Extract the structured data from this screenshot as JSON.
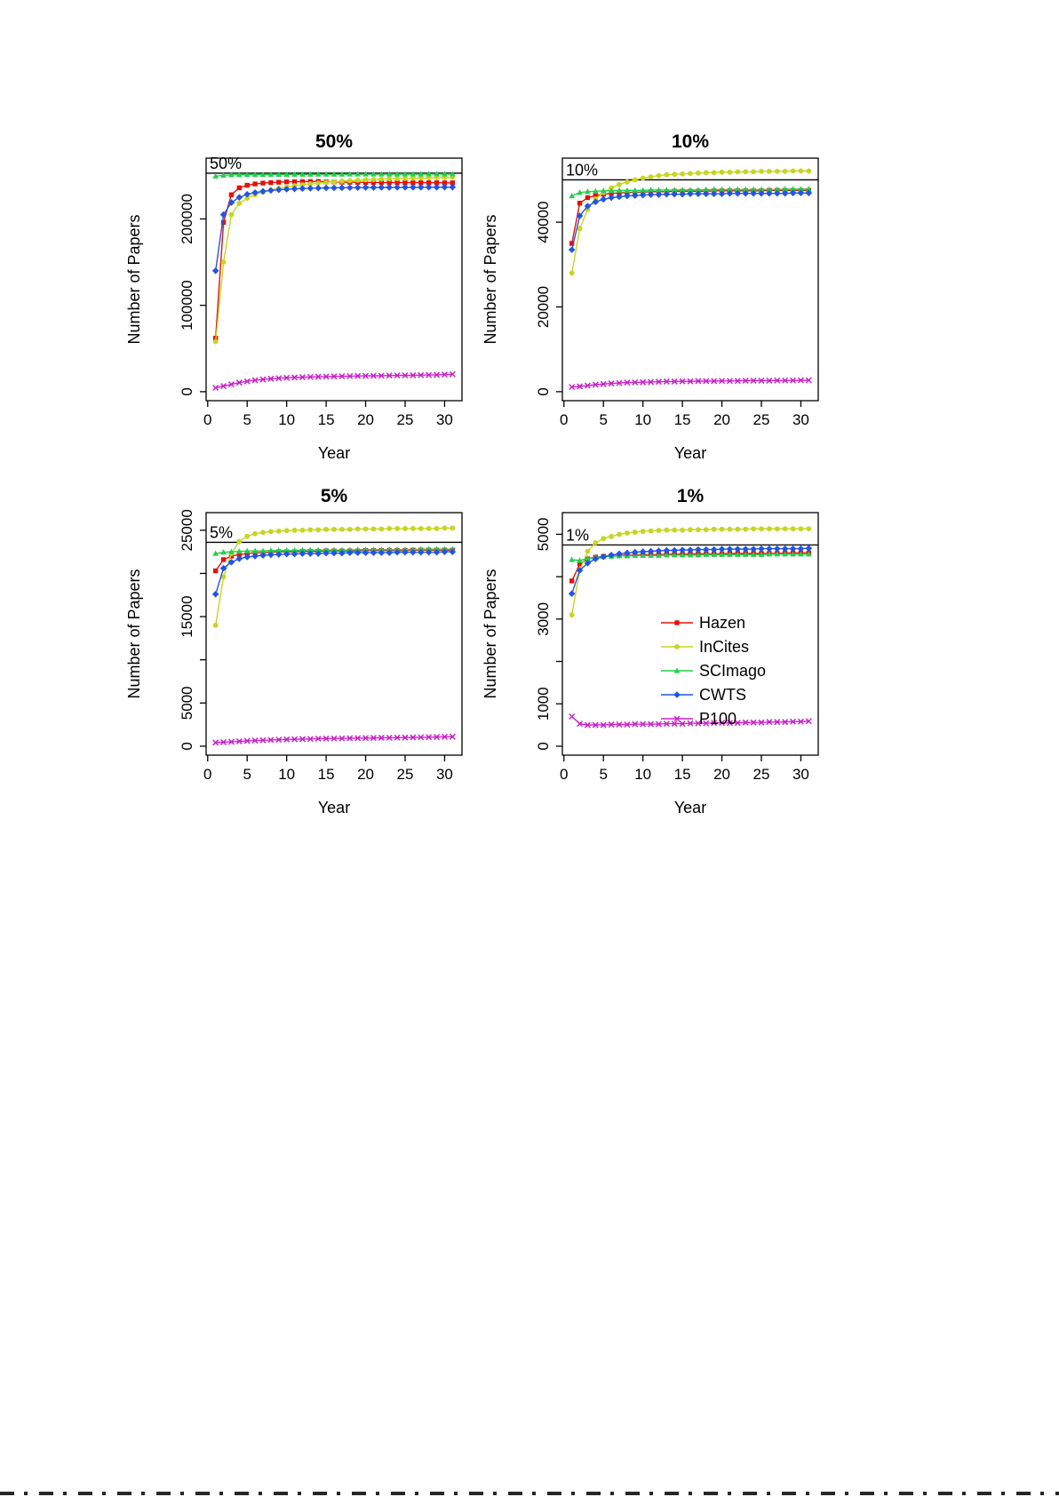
{
  "figure": {
    "background": "#ffffff",
    "xlabel": "Year",
    "ylabel": "Number of Papers"
  },
  "legend": {
    "position": "inside-1pct-panel",
    "entries": [
      {
        "label": "Hazen",
        "color": "#e3120b",
        "symbol": "square"
      },
      {
        "label": "InCites",
        "color": "#c6d61f",
        "symbol": "circle"
      },
      {
        "label": "SCImago",
        "color": "#22cf4c",
        "symbol": "triangle"
      },
      {
        "label": "CWTS",
        "color": "#2255e0",
        "symbol": "diamond"
      },
      {
        "label": "P100",
        "color": "#c922c9",
        "symbol": "x"
      }
    ]
  },
  "years": [
    1,
    2,
    3,
    4,
    5,
    6,
    7,
    8,
    9,
    10,
    11,
    12,
    13,
    14,
    15,
    16,
    17,
    18,
    19,
    20,
    21,
    22,
    23,
    24,
    25,
    26,
    27,
    28,
    29,
    30,
    31
  ],
  "chart_data": [
    {
      "type": "line",
      "title": "50%",
      "threshold_label": "50%",
      "threshold_value": 253000,
      "xlabel": "Year",
      "ylabel": "Number of Papers",
      "xlim": [
        1,
        31
      ],
      "ylim": [
        0,
        260000
      ],
      "x_ticks": [
        0,
        5,
        10,
        15,
        20,
        25,
        30
      ],
      "y_ticks": [
        {
          "v": 0,
          "l": "0"
        },
        {
          "v": 100000,
          "l": "100000"
        },
        {
          "v": 200000,
          "l": "200000"
        }
      ],
      "series": [
        {
          "name": "Hazen",
          "values": [
            62000,
            196000,
            228000,
            236000,
            239000,
            240500,
            241500,
            242000,
            242500,
            243000,
            243000,
            243200,
            243300,
            243400,
            243000,
            242800,
            242600,
            242500,
            242400,
            242300,
            242200,
            242200,
            242100,
            242100,
            242000,
            242000,
            242000,
            241900,
            241900,
            241800,
            241800
          ]
        },
        {
          "name": "InCites",
          "values": [
            58000,
            150000,
            205000,
            218000,
            224000,
            228000,
            231000,
            233500,
            235500,
            237000,
            238500,
            239500,
            240500,
            241500,
            242300,
            243000,
            243700,
            244300,
            244800,
            245300,
            245700,
            246100,
            246400,
            246700,
            247000,
            247200,
            247400,
            247600,
            247800,
            248000,
            248200
          ]
        },
        {
          "name": "SCImago",
          "values": [
            249500,
            250500,
            251000,
            251200,
            251300,
            251400,
            251400,
            251500,
            251500,
            251500,
            251600,
            251600,
            251600,
            251700,
            251700,
            251700,
            251700,
            251800,
            251800,
            251800,
            251800,
            251800,
            251900,
            251900,
            251900,
            251900,
            251900,
            252000,
            252000,
            252000,
            252000
          ]
        },
        {
          "name": "CWTS",
          "values": [
            140000,
            205000,
            219000,
            225000,
            228500,
            230500,
            232000,
            233000,
            233800,
            234400,
            234800,
            235200,
            235500,
            235700,
            235900,
            236000,
            236100,
            236200,
            236300,
            236400,
            236400,
            236500,
            236500,
            236600,
            236600,
            236600,
            236700,
            236700,
            236700,
            236800,
            236800
          ]
        },
        {
          "name": "P100",
          "values": [
            4500,
            6500,
            8500,
            10500,
            12000,
            13200,
            14200,
            15000,
            15600,
            16100,
            16500,
            16800,
            17100,
            17300,
            17500,
            17700,
            17900,
            18000,
            18200,
            18300,
            18400,
            18500,
            18700,
            18800,
            18900,
            19000,
            19200,
            19300,
            19500,
            19800,
            20200
          ]
        }
      ]
    },
    {
      "type": "line",
      "title": "10%",
      "threshold_label": "10%",
      "threshold_value": 50000,
      "xlabel": "Year",
      "ylabel": "Number of Papers",
      "xlim": [
        1,
        31
      ],
      "ylim": [
        0,
        53000
      ],
      "x_ticks": [
        0,
        5,
        10,
        15,
        20,
        25,
        30
      ],
      "y_ticks": [
        {
          "v": 0,
          "l": "0"
        },
        {
          "v": 20000,
          "l": "20000"
        },
        {
          "v": 40000,
          "l": "40000"
        }
      ],
      "series": [
        {
          "name": "Hazen",
          "values": [
            35000,
            44500,
            45800,
            46300,
            46600,
            46800,
            46900,
            47000,
            47100,
            47100,
            47200,
            47200,
            47200,
            47300,
            47300,
            47300,
            47300,
            47300,
            47400,
            47400,
            47400,
            47400,
            47400,
            47400,
            47400,
            47500,
            47500,
            47500,
            47500,
            47500,
            47500
          ]
        },
        {
          "name": "InCites",
          "values": [
            28000,
            38500,
            43000,
            45500,
            47000,
            48100,
            48900,
            49500,
            50000,
            50400,
            50700,
            51000,
            51200,
            51300,
            51400,
            51500,
            51600,
            51700,
            51700,
            51800,
            51800,
            51900,
            51900,
            51900,
            52000,
            52000,
            52000,
            52000,
            52100,
            52100,
            52100
          ]
        },
        {
          "name": "SCImago",
          "values": [
            46200,
            47000,
            47200,
            47300,
            47400,
            47400,
            47500,
            47500,
            47500,
            47500,
            47600,
            47600,
            47600,
            47600,
            47600,
            47600,
            47600,
            47700,
            47700,
            47700,
            47700,
            47700,
            47700,
            47700,
            47700,
            47700,
            47700,
            47800,
            47800,
            47800,
            47800
          ]
        },
        {
          "name": "CWTS",
          "values": [
            33500,
            41500,
            43800,
            44800,
            45400,
            45800,
            46000,
            46200,
            46300,
            46400,
            46500,
            46500,
            46600,
            46600,
            46600,
            46700,
            46700,
            46700,
            46700,
            46700,
            46800,
            46800,
            46800,
            46800,
            46800,
            46800,
            46800,
            46800,
            46900,
            46900,
            46900
          ]
        },
        {
          "name": "P100",
          "values": [
            1100,
            1250,
            1450,
            1650,
            1800,
            1950,
            2050,
            2150,
            2200,
            2250,
            2300,
            2350,
            2400,
            2400,
            2450,
            2450,
            2500,
            2500,
            2500,
            2550,
            2550,
            2550,
            2600,
            2600,
            2600,
            2600,
            2650,
            2650,
            2650,
            2700,
            2700
          ]
        }
      ]
    },
    {
      "type": "line",
      "title": "5%",
      "threshold_label": "5%",
      "threshold_value": 23600,
      "xlabel": "Year",
      "ylabel": "Number of Papers",
      "xlim": [
        1,
        31
      ],
      "ylim": [
        0,
        26000
      ],
      "x_ticks": [
        0,
        5,
        10,
        15,
        20,
        25,
        30
      ],
      "y_ticks": [
        {
          "v": 0,
          "l": "0"
        },
        {
          "v": 5000,
          "l": "5000"
        },
        {
          "v": 10000,
          "l": ""
        },
        {
          "v": 15000,
          "l": "15000"
        },
        {
          "v": 20000,
          "l": ""
        },
        {
          "v": 25000,
          "l": "25000"
        }
      ],
      "series": [
        {
          "name": "Hazen",
          "values": [
            20300,
            21600,
            22000,
            22200,
            22300,
            22400,
            22400,
            22450,
            22500,
            22500,
            22500,
            22550,
            22550,
            22550,
            22600,
            22600,
            22600,
            22600,
            22600,
            22650,
            22650,
            22650,
            22650,
            22650,
            22650,
            22700,
            22700,
            22700,
            22700,
            22700,
            22700
          ]
        },
        {
          "name": "InCites",
          "values": [
            14000,
            19600,
            22300,
            23700,
            24300,
            24600,
            24750,
            24850,
            24900,
            24950,
            25000,
            25000,
            25050,
            25050,
            25100,
            25100,
            25100,
            25100,
            25150,
            25150,
            25150,
            25150,
            25200,
            25200,
            25200,
            25200,
            25200,
            25200,
            25200,
            25250,
            25250
          ]
        },
        {
          "name": "SCImago",
          "values": [
            22300,
            22450,
            22500,
            22550,
            22600,
            22600,
            22600,
            22650,
            22650,
            22650,
            22650,
            22700,
            22700,
            22700,
            22700,
            22700,
            22700,
            22700,
            22750,
            22750,
            22750,
            22750,
            22750,
            22750,
            22750,
            22750,
            22800,
            22800,
            22800,
            22800,
            22800
          ]
        },
        {
          "name": "CWTS",
          "values": [
            17600,
            20600,
            21300,
            21700,
            21900,
            22000,
            22100,
            22150,
            22200,
            22250,
            22250,
            22300,
            22300,
            22300,
            22350,
            22350,
            22350,
            22400,
            22400,
            22400,
            22400,
            22400,
            22400,
            22450,
            22450,
            22450,
            22450,
            22450,
            22450,
            22500,
            22500
          ]
        },
        {
          "name": "P100",
          "values": [
            420,
            460,
            510,
            560,
            610,
            650,
            690,
            720,
            750,
            780,
            800,
            820,
            840,
            860,
            880,
            890,
            900,
            920,
            930,
            940,
            960,
            970,
            980,
            990,
            1000,
            1020,
            1030,
            1040,
            1060,
            1080,
            1100
          ]
        }
      ]
    },
    {
      "type": "line",
      "title": "1%",
      "threshold_label": "1%",
      "threshold_value": 4750,
      "xlabel": "Year",
      "ylabel": "Number of Papers",
      "xlim": [
        1,
        31
      ],
      "ylim": [
        0,
        5300
      ],
      "x_ticks": [
        0,
        5,
        10,
        15,
        20,
        25,
        30
      ],
      "y_ticks": [
        {
          "v": 0,
          "l": "0"
        },
        {
          "v": 1000,
          "l": "1000"
        },
        {
          "v": 2000,
          "l": ""
        },
        {
          "v": 3000,
          "l": "3000"
        },
        {
          "v": 4000,
          "l": ""
        },
        {
          "v": 5000,
          "l": "5000"
        }
      ],
      "series": [
        {
          "name": "Hazen",
          "values": [
            3900,
            4300,
            4420,
            4460,
            4480,
            4490,
            4500,
            4510,
            4510,
            4520,
            4520,
            4520,
            4530,
            4530,
            4530,
            4540,
            4540,
            4540,
            4540,
            4540,
            4550,
            4550,
            4550,
            4550,
            4550,
            4550,
            4550,
            4560,
            4560,
            4560,
            4560
          ]
        },
        {
          "name": "InCites",
          "values": [
            3100,
            4150,
            4600,
            4800,
            4900,
            4950,
            5000,
            5030,
            5050,
            5070,
            5080,
            5090,
            5100,
            5100,
            5100,
            5110,
            5110,
            5110,
            5120,
            5120,
            5120,
            5120,
            5120,
            5130,
            5130,
            5130,
            5130,
            5130,
            5130,
            5130,
            5130
          ]
        },
        {
          "name": "SCImago",
          "values": [
            4400,
            4380,
            4430,
            4460,
            4470,
            4480,
            4490,
            4490,
            4500,
            4500,
            4500,
            4500,
            4510,
            4510,
            4510,
            4510,
            4510,
            4520,
            4520,
            4520,
            4520,
            4520,
            4520,
            4520,
            4520,
            4530,
            4530,
            4530,
            4530,
            4530,
            4530
          ]
        },
        {
          "name": "CWTS",
          "values": [
            3600,
            4150,
            4320,
            4420,
            4470,
            4510,
            4540,
            4560,
            4580,
            4590,
            4600,
            4610,
            4620,
            4620,
            4630,
            4630,
            4640,
            4640,
            4640,
            4650,
            4650,
            4650,
            4650,
            4650,
            4660,
            4660,
            4660,
            4660,
            4660,
            4660,
            4670
          ]
        },
        {
          "name": "P100",
          "values": [
            700,
            530,
            500,
            500,
            500,
            510,
            510,
            510,
            520,
            520,
            520,
            520,
            530,
            530,
            530,
            540,
            540,
            540,
            550,
            550,
            550,
            550,
            560,
            560,
            560,
            570,
            570,
            570,
            580,
            580,
            590
          ]
        }
      ]
    }
  ]
}
